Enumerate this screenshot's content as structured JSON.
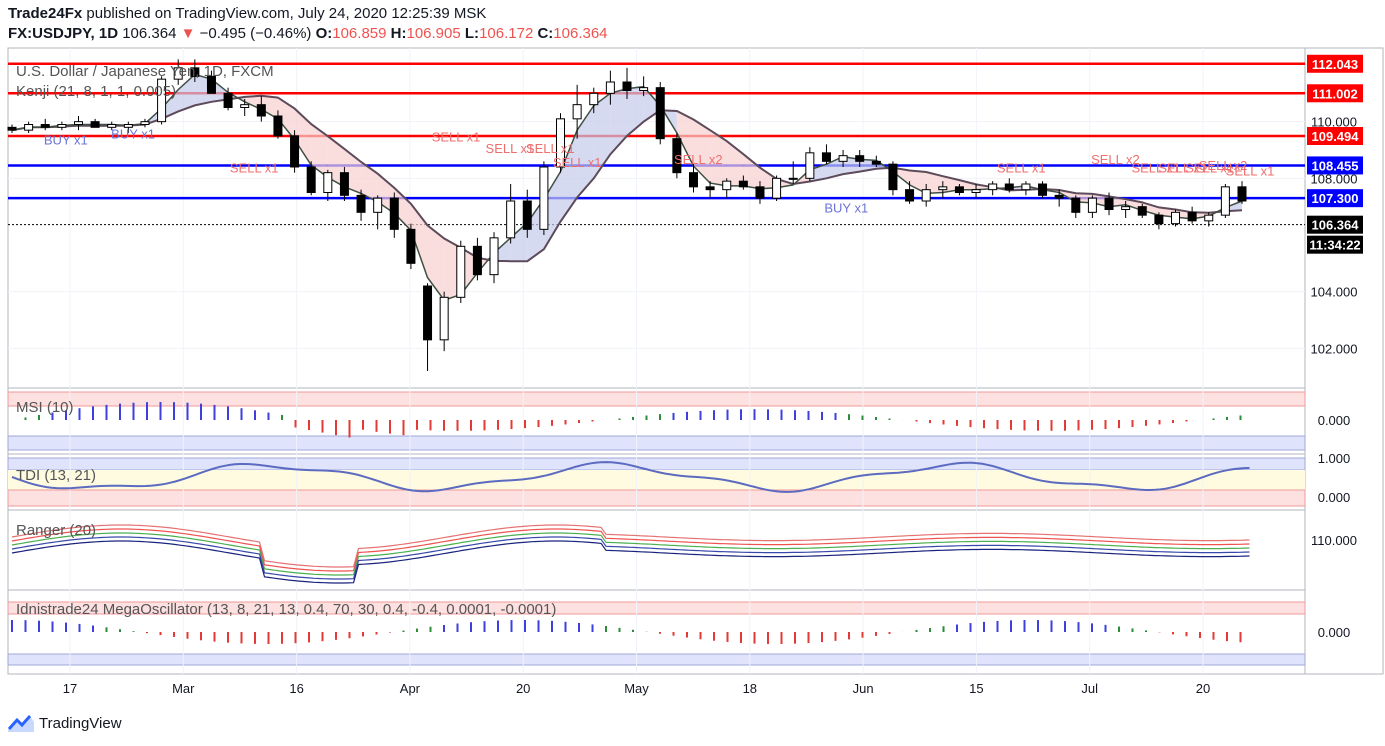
{
  "header": {
    "publisher": "Trade24Fx",
    "published_text": "published on TradingView.com, July 24, 2020 12:25:39 MSK",
    "symbol": "FX:USDJPY, 1D",
    "last": "106.364",
    "change": "−0.495 (−0.46%)",
    "o_label": "O:",
    "o_value": "106.859",
    "h_label": "H:",
    "h_value": "106.905",
    "l_label": "L:",
    "l_value": "106.172",
    "c_label": "C:",
    "c_value": "106.364"
  },
  "panels": {
    "main_title": "U.S. Dollar / Japanese Yen, 1D, FXCM",
    "kenji": "Kenji (21, 8, 1, 1, 0.005)",
    "msi": "MSI (10)",
    "tdi": "TDI (13, 21)",
    "ranger": "Ranger (20)",
    "mega": "Idnistrade24 MegaOscillator (13, 8, 21, 13, 0.4, 70, 30, 0.4, -0.4, 0.0001, -0.0001)"
  },
  "footer": {
    "brand": "TradingView"
  },
  "colors": {
    "up": "#ffffff",
    "down": "#000000",
    "red_level": "#ff0000",
    "blue_level": "#0000ff",
    "price_tag": "#000000"
  },
  "chart_data": {
    "type": "candlestick",
    "title": "U.S. Dollar / Japanese Yen, 1D, FXCM",
    "x_tick_labels": [
      "17",
      "Mar",
      "16",
      "Apr",
      "20",
      "May",
      "18",
      "Jun",
      "15",
      "Jul",
      "20"
    ],
    "y_ticks": [
      "110.000",
      "108.000",
      "104.000",
      "102.000"
    ],
    "y_range": [
      100.6,
      112.6
    ],
    "levels": [
      {
        "value": 112.043,
        "label": "112.043",
        "color": "#ff0000"
      },
      {
        "value": 111.002,
        "label": "111.002",
        "color": "#ff0000"
      },
      {
        "value": 109.494,
        "label": "109.494",
        "color": "#ff0000"
      },
      {
        "value": 108.455,
        "label": "108.455",
        "color": "#0000ff"
      },
      {
        "value": 107.3,
        "label": "107.300",
        "color": "#0000ff"
      }
    ],
    "last_price": {
      "value": 106.364,
      "label": "106.364",
      "countdown": "11:34:22"
    },
    "signals": [
      {
        "text": "BUY x1",
        "idx": 4,
        "value": 109.2,
        "type": "buy"
      },
      {
        "text": "BUY x1",
        "idx": 9,
        "value": 109.4,
        "type": "buy"
      },
      {
        "text": "SELL x1",
        "idx": 18,
        "value": 108.2,
        "type": "sell"
      },
      {
        "text": "SELL x1",
        "idx": 33,
        "value": 109.3,
        "type": "sell"
      },
      {
        "text": "SELL x1",
        "idx": 37,
        "value": 108.9,
        "type": "sell"
      },
      {
        "text": "SELL x1",
        "idx": 40,
        "value": 108.9,
        "type": "sell"
      },
      {
        "text": "SELL x1",
        "idx": 42,
        "value": 108.4,
        "type": "sell"
      },
      {
        "text": "SELL x2",
        "idx": 51,
        "value": 108.5,
        "type": "sell"
      },
      {
        "text": "BUY x1",
        "idx": 62,
        "value": 106.8,
        "type": "buy"
      },
      {
        "text": "SELL x1",
        "idx": 75,
        "value": 108.2,
        "type": "sell"
      },
      {
        "text": "SELL x2",
        "idx": 82,
        "value": 108.5,
        "type": "sell"
      },
      {
        "text": "SELL x1",
        "idx": 85,
        "value": 108.2,
        "type": "sell"
      },
      {
        "text": "SELL x1",
        "idx": 87,
        "value": 108.2,
        "type": "sell"
      },
      {
        "text": "SELL x1",
        "idx": 89,
        "value": 108.2,
        "type": "sell"
      },
      {
        "text": "SELL x2",
        "idx": 90,
        "value": 108.3,
        "type": "sell"
      },
      {
        "text": "SELL x1",
        "idx": 92,
        "value": 108.1,
        "type": "sell"
      }
    ],
    "candles": [
      [
        109.8,
        109.9,
        109.6,
        109.7
      ],
      [
        109.7,
        110.0,
        109.6,
        109.9
      ],
      [
        109.9,
        110.1,
        109.7,
        109.8
      ],
      [
        109.8,
        110.0,
        109.7,
        109.9
      ],
      [
        109.9,
        110.2,
        109.7,
        110.0
      ],
      [
        110.0,
        110.1,
        109.8,
        109.8
      ],
      [
        109.8,
        110.0,
        109.7,
        109.9
      ],
      [
        109.8,
        110.0,
        109.6,
        109.9
      ],
      [
        109.9,
        110.1,
        109.8,
        110.0
      ],
      [
        110.0,
        111.6,
        109.9,
        111.5
      ],
      [
        111.5,
        112.2,
        111.3,
        111.9
      ],
      [
        111.9,
        112.2,
        111.4,
        111.6
      ],
      [
        111.6,
        111.8,
        111.0,
        111.0
      ],
      [
        111.0,
        111.2,
        110.4,
        110.5
      ],
      [
        110.5,
        110.8,
        110.2,
        110.6
      ],
      [
        110.6,
        110.9,
        110.0,
        110.2
      ],
      [
        110.2,
        110.4,
        109.4,
        109.5
      ],
      [
        109.5,
        109.7,
        108.2,
        108.4
      ],
      [
        108.4,
        108.6,
        107.4,
        107.5
      ],
      [
        107.5,
        108.3,
        107.2,
        108.2
      ],
      [
        108.2,
        108.4,
        107.2,
        107.4
      ],
      [
        107.4,
        107.6,
        106.5,
        106.8
      ],
      [
        106.8,
        107.4,
        106.2,
        107.3
      ],
      [
        107.3,
        107.5,
        105.9,
        106.2
      ],
      [
        106.2,
        106.4,
        104.8,
        105.0
      ],
      [
        104.2,
        104.3,
        101.2,
        102.3
      ],
      [
        102.3,
        104.0,
        101.9,
        103.8
      ],
      [
        103.8,
        105.8,
        103.6,
        105.6
      ],
      [
        105.6,
        105.9,
        104.4,
        104.6
      ],
      [
        104.6,
        106.1,
        104.3,
        105.9
      ],
      [
        105.9,
        107.8,
        105.7,
        107.2
      ],
      [
        107.2,
        107.6,
        105.9,
        106.2
      ],
      [
        106.2,
        108.6,
        106.0,
        108.4
      ],
      [
        108.4,
        110.3,
        108.2,
        110.1
      ],
      [
        110.1,
        111.3,
        109.4,
        110.6
      ],
      [
        110.6,
        111.2,
        110.3,
        111.0
      ],
      [
        111.0,
        111.8,
        110.6,
        111.4
      ],
      [
        111.4,
        111.9,
        110.8,
        111.1
      ],
      [
        111.1,
        111.6,
        110.9,
        111.2
      ],
      [
        111.2,
        111.4,
        109.2,
        109.4
      ],
      [
        109.4,
        109.6,
        108.0,
        108.2
      ],
      [
        108.2,
        108.5,
        107.5,
        107.7
      ],
      [
        107.7,
        107.9,
        107.3,
        107.6
      ],
      [
        107.6,
        108.0,
        107.3,
        107.9
      ],
      [
        107.9,
        108.1,
        107.6,
        107.7
      ],
      [
        107.7,
        107.9,
        107.1,
        107.3
      ],
      [
        107.3,
        108.1,
        107.2,
        108.0
      ],
      [
        108.0,
        108.6,
        107.8,
        108.0
      ],
      [
        108.0,
        109.1,
        107.9,
        108.9
      ],
      [
        108.9,
        109.2,
        108.5,
        108.6
      ],
      [
        108.6,
        109.0,
        108.4,
        108.8
      ],
      [
        108.8,
        109.0,
        108.4,
        108.6
      ],
      [
        108.6,
        108.8,
        108.4,
        108.5
      ],
      [
        108.5,
        108.6,
        107.4,
        107.6
      ],
      [
        107.6,
        107.9,
        107.1,
        107.2
      ],
      [
        107.2,
        107.8,
        107.0,
        107.6
      ],
      [
        107.6,
        107.9,
        107.3,
        107.7
      ],
      [
        107.7,
        107.8,
        107.4,
        107.5
      ],
      [
        107.5,
        107.8,
        107.3,
        107.6
      ],
      [
        107.6,
        107.9,
        107.4,
        107.8
      ],
      [
        107.8,
        108.0,
        107.5,
        107.6
      ],
      [
        107.6,
        107.9,
        107.4,
        107.8
      ],
      [
        107.8,
        107.9,
        107.3,
        107.4
      ],
      [
        107.4,
        107.6,
        107.0,
        107.3
      ],
      [
        107.3,
        107.4,
        106.6,
        106.8
      ],
      [
        106.8,
        107.4,
        106.6,
        107.3
      ],
      [
        107.3,
        107.5,
        106.7,
        106.9
      ],
      [
        106.9,
        107.2,
        106.6,
        107.0
      ],
      [
        107.0,
        107.1,
        106.6,
        106.7
      ],
      [
        106.7,
        106.8,
        106.2,
        106.4
      ],
      [
        106.4,
        106.9,
        106.3,
        106.8
      ],
      [
        106.8,
        107.0,
        106.4,
        106.5
      ],
      [
        106.5,
        106.8,
        106.3,
        106.7
      ],
      [
        106.7,
        107.8,
        106.6,
        107.7
      ],
      [
        107.7,
        107.9,
        107.1,
        107.2
      ]
    ]
  }
}
